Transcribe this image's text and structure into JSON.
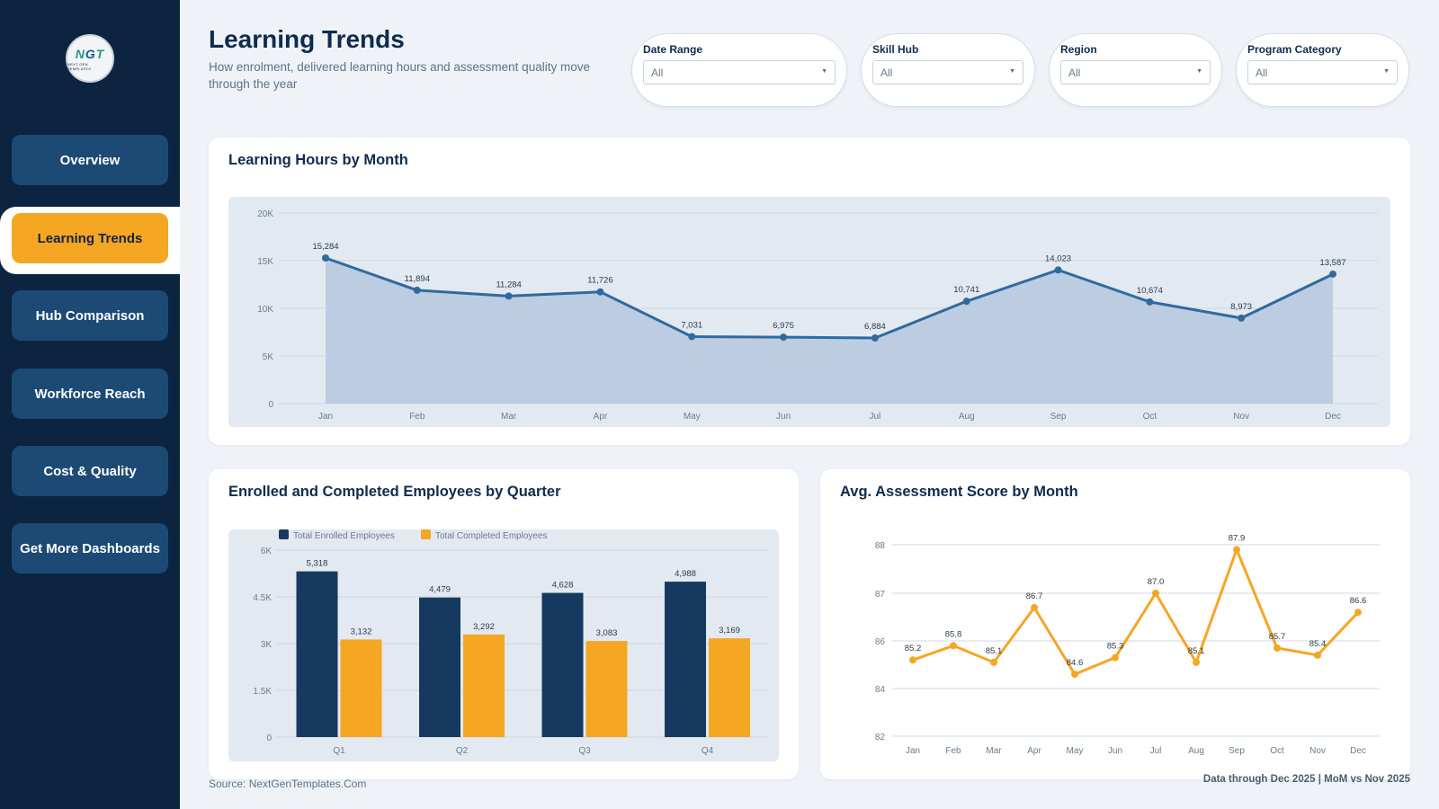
{
  "logo": {
    "text_a": "N",
    "text_b": "G",
    "text_c": "T",
    "tagline": "NEXT GEN TEMPLATES"
  },
  "nav": [
    {
      "label": "Overview"
    },
    {
      "label": "Learning Trends",
      "active": true
    },
    {
      "label": "Hub Comparison"
    },
    {
      "label": "Workforce Reach"
    },
    {
      "label": "Cost & Quality"
    },
    {
      "label": "Get More Dashboards"
    }
  ],
  "header": {
    "title": "Learning Trends",
    "subtitle": "How enrolment, delivered learning hours and assessment quality move through the year"
  },
  "filters": [
    {
      "label": "Date Range",
      "value": "All"
    },
    {
      "label": "Skill Hub",
      "value": "All"
    },
    {
      "label": "Region",
      "value": "All"
    },
    {
      "label": "Program Category",
      "value": "All"
    }
  ],
  "colors": {
    "navy": "#0d2440",
    "accent": "#f5a623",
    "line_blue": "#2f6a9f",
    "bar_navy": "#163a5f"
  },
  "charts": {
    "hours": {
      "title": "Learning Hours by Month",
      "chart_data": {
        "type": "area",
        "categories": [
          "Jan",
          "Feb",
          "Mar",
          "Apr",
          "May",
          "Jun",
          "Jul",
          "Aug",
          "Sep",
          "Oct",
          "Nov",
          "Dec"
        ],
        "values": [
          15284,
          11894,
          11284,
          11726,
          7031,
          6975,
          6884,
          10741,
          14023,
          10674,
          8973,
          13587
        ],
        "labels": [
          "15,284",
          "11,894",
          "11,284",
          "11,726",
          "7,031",
          "6,975",
          "6,884",
          "10,741",
          "14,023",
          "10,674",
          "8,973",
          "13,587"
        ],
        "yticks": [
          "20K",
          "15K",
          "10K",
          "5K",
          "0"
        ],
        "ylim": [
          0,
          20000
        ]
      }
    },
    "quarter": {
      "title": "Enrolled and Completed Employees by Quarter",
      "chart_data": {
        "type": "bar",
        "categories": [
          "Q1",
          "Q2",
          "Q3",
          "Q4"
        ],
        "series": [
          {
            "name": "Total Enrolled Employees",
            "values": [
              5318,
              4479,
              4628,
              4988
            ],
            "labels": [
              "5,318",
              "4,479",
              "4,628",
              "4,988"
            ]
          },
          {
            "name": "Total Completed Employees",
            "values": [
              3132,
              3292,
              3083,
              3169
            ],
            "labels": [
              "3,132",
              "3,292",
              "3,083",
              "3,169"
            ]
          }
        ],
        "yticks": [
          "6K",
          "4.5K",
          "3K",
          "1.5K",
          "0"
        ],
        "ylim": [
          0,
          6000
        ],
        "legend": "top-left"
      }
    },
    "score": {
      "title": "Avg. Assessment Score by Month",
      "chart_data": {
        "type": "line",
        "categories": [
          "Jan",
          "Feb",
          "Mar",
          "Apr",
          "May",
          "Jun",
          "Jul",
          "Aug",
          "Sep",
          "Oct",
          "Nov",
          "Dec"
        ],
        "values": [
          85.2,
          85.8,
          85.1,
          86.7,
          84.6,
          85.3,
          87.0,
          85.1,
          87.9,
          85.7,
          85.4,
          86.6
        ],
        "labels": [
          "85.2",
          "85.8",
          "85.1",
          "86.7",
          "84.6",
          "85.3",
          "87.0",
          "85.1",
          "87.9",
          "85.7",
          "85.4",
          "86.6"
        ],
        "yticks": [
          "88",
          "87",
          "86",
          "84",
          "82"
        ]
      }
    }
  },
  "footer": {
    "source": "Source: NextGenTemplates.Com",
    "note": "Data through Dec 2025 | MoM vs Nov 2025"
  }
}
